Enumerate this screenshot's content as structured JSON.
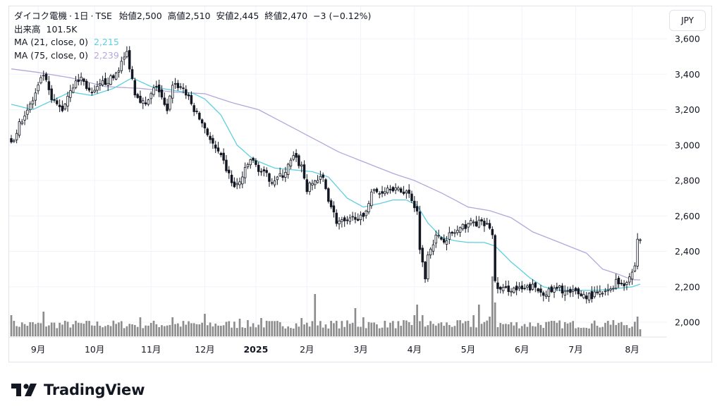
{
  "header": {
    "symbol_name": "ダイコク電機",
    "interval": "1日",
    "exchange": "TSE",
    "open_label": "始値",
    "open": "2,500",
    "high_label": "高値",
    "high": "2,510",
    "low_label": "安値",
    "low": "2,445",
    "close_label": "終値",
    "close": "2,470",
    "change": "−3 (−0.12%)",
    "volume_label": "出来高",
    "volume": "101.5K",
    "ma21_label": "MA (21, close, 0)",
    "ma21_value": "2,215",
    "ma75_label": "MA (75, close, 0)",
    "ma75_value": "2,239"
  },
  "currency_button": "JPY",
  "branding": {
    "name": "TradingView"
  },
  "colors": {
    "up": "#ffffff",
    "down": "#131722",
    "ma21": "#5ecfe0",
    "ma75": "#b6a6dc",
    "volume": "#8c8c8c"
  },
  "chart_data": {
    "type": "candlestick",
    "y_axis": {
      "ticks": [
        2000,
        2200,
        2400,
        2600,
        2800,
        3000,
        3200,
        3400,
        3600
      ],
      "tick_labels": [
        "2,000",
        "2,200",
        "2,400",
        "2,600",
        "2,800",
        "3,000",
        "3,200",
        "3,400",
        "3,600"
      ]
    },
    "x_axis": {
      "labels": [
        {
          "label": "9月",
          "bar": 10
        },
        {
          "label": "10月",
          "bar": 31
        },
        {
          "label": "11月",
          "bar": 52
        },
        {
          "label": "12月",
          "bar": 72
        },
        {
          "label": "2025",
          "bar": 91,
          "bold": true
        },
        {
          "label": "2月",
          "bar": 110
        },
        {
          "label": "3月",
          "bar": 130
        },
        {
          "label": "4月",
          "bar": 150
        },
        {
          "label": "5月",
          "bar": 170
        },
        {
          "label": "6月",
          "bar": 190
        },
        {
          "label": "7月",
          "bar": 210
        },
        {
          "label": "8月",
          "bar": 231
        }
      ]
    },
    "close_anchors": [
      [
        0,
        3000
      ],
      [
        4,
        3150
      ],
      [
        8,
        3250
      ],
      [
        12,
        3400
      ],
      [
        15,
        3250
      ],
      [
        19,
        3200
      ],
      [
        22,
        3320
      ],
      [
        26,
        3380
      ],
      [
        30,
        3280
      ],
      [
        34,
        3350
      ],
      [
        38,
        3380
      ],
      [
        43,
        3520
      ],
      [
        46,
        3300
      ],
      [
        50,
        3220
      ],
      [
        54,
        3340
      ],
      [
        58,
        3180
      ],
      [
        60,
        3350
      ],
      [
        64,
        3320
      ],
      [
        68,
        3200
      ],
      [
        72,
        3100
      ],
      [
        75,
        3000
      ],
      [
        79,
        2900
      ],
      [
        83,
        2760
      ],
      [
        85,
        2790
      ],
      [
        89,
        2920
      ],
      [
        93,
        2850
      ],
      [
        97,
        2800
      ],
      [
        101,
        2830
      ],
      [
        105,
        2930
      ],
      [
        108,
        2880
      ],
      [
        110,
        2750
      ],
      [
        113,
        2800
      ],
      [
        116,
        2810
      ],
      [
        118,
        2700
      ],
      [
        121,
        2570
      ],
      [
        125,
        2560
      ],
      [
        128,
        2600
      ],
      [
        131,
        2580
      ],
      [
        134,
        2740
      ],
      [
        137,
        2730
      ],
      [
        141,
        2770
      ],
      [
        144,
        2740
      ],
      [
        147,
        2740
      ],
      [
        149,
        2700
      ],
      [
        151,
        2620
      ],
      [
        152,
        2430
      ],
      [
        153,
        2330
      ],
      [
        154,
        2250
      ],
      [
        155,
        2400
      ],
      [
        158,
        2480
      ],
      [
        161,
        2470
      ],
      [
        164,
        2500
      ],
      [
        167,
        2520
      ],
      [
        170,
        2560
      ],
      [
        174,
        2560
      ],
      [
        178,
        2540
      ],
      [
        179,
        2490
      ],
      [
        180,
        2220
      ],
      [
        182,
        2180
      ],
      [
        186,
        2190
      ],
      [
        190,
        2180
      ],
      [
        194,
        2200
      ],
      [
        197,
        2170
      ],
      [
        200,
        2170
      ],
      [
        204,
        2190
      ],
      [
        208,
        2160
      ],
      [
        210,
        2170
      ],
      [
        213,
        2150
      ],
      [
        216,
        2150
      ],
      [
        219,
        2160
      ],
      [
        222,
        2170
      ],
      [
        225,
        2230
      ],
      [
        228,
        2220
      ],
      [
        231,
        2280
      ],
      [
        232,
        2320
      ],
      [
        233,
        2470
      ],
      [
        234,
        2470
      ]
    ],
    "ma21_anchors": [
      [
        0,
        3230
      ],
      [
        8,
        3200
      ],
      [
        15,
        3250
      ],
      [
        22,
        3300
      ],
      [
        30,
        3280
      ],
      [
        38,
        3320
      ],
      [
        45,
        3380
      ],
      [
        52,
        3330
      ],
      [
        60,
        3310
      ],
      [
        68,
        3290
      ],
      [
        72,
        3260
      ],
      [
        78,
        3170
      ],
      [
        84,
        3000
      ],
      [
        90,
        2920
      ],
      [
        98,
        2870
      ],
      [
        105,
        2860
      ],
      [
        112,
        2850
      ],
      [
        118,
        2820
      ],
      [
        125,
        2700
      ],
      [
        131,
        2650
      ],
      [
        137,
        2670
      ],
      [
        142,
        2690
      ],
      [
        147,
        2690
      ],
      [
        151,
        2660
      ],
      [
        155,
        2560
      ],
      [
        160,
        2480
      ],
      [
        165,
        2460
      ],
      [
        170,
        2450
      ],
      [
        176,
        2450
      ],
      [
        180,
        2430
      ],
      [
        186,
        2340
      ],
      [
        193,
        2250
      ],
      [
        198,
        2200
      ],
      [
        204,
        2180
      ],
      [
        210,
        2180
      ],
      [
        218,
        2180
      ],
      [
        225,
        2190
      ],
      [
        231,
        2200
      ],
      [
        234,
        2215
      ]
    ],
    "ma75_anchors": [
      [
        0,
        3430
      ],
      [
        10,
        3410
      ],
      [
        22,
        3380
      ],
      [
        35,
        3330
      ],
      [
        48,
        3320
      ],
      [
        60,
        3300
      ],
      [
        72,
        3290
      ],
      [
        82,
        3240
      ],
      [
        92,
        3200
      ],
      [
        102,
        3120
      ],
      [
        112,
        3040
      ],
      [
        122,
        2960
      ],
      [
        132,
        2900
      ],
      [
        142,
        2840
      ],
      [
        150,
        2800
      ],
      [
        160,
        2730
      ],
      [
        170,
        2650
      ],
      [
        178,
        2630
      ],
      [
        186,
        2590
      ],
      [
        194,
        2510
      ],
      [
        204,
        2450
      ],
      [
        214,
        2390
      ],
      [
        220,
        2300
      ],
      [
        226,
        2270
      ],
      [
        231,
        2240
      ],
      [
        234,
        2239
      ]
    ],
    "volume_spikes": [
      [
        0,
        0.3
      ],
      [
        12,
        0.35
      ],
      [
        48,
        0.27
      ],
      [
        60,
        0.27
      ],
      [
        72,
        0.32
      ],
      [
        85,
        0.25
      ],
      [
        93,
        0.26
      ],
      [
        108,
        0.26
      ],
      [
        113,
        0.6
      ],
      [
        128,
        0.4
      ],
      [
        131,
        0.27
      ],
      [
        145,
        0.15
      ],
      [
        150,
        0.3
      ],
      [
        151,
        0.45
      ],
      [
        153,
        0.3
      ],
      [
        172,
        0.3
      ],
      [
        174,
        0.45
      ],
      [
        178,
        0.28
      ],
      [
        179,
        0.85
      ],
      [
        180,
        0.48
      ],
      [
        218,
        0.15
      ],
      [
        222,
        0.22
      ],
      [
        233,
        0.28
      ],
      [
        234,
        0.1
      ]
    ],
    "bar_count": 235
  }
}
